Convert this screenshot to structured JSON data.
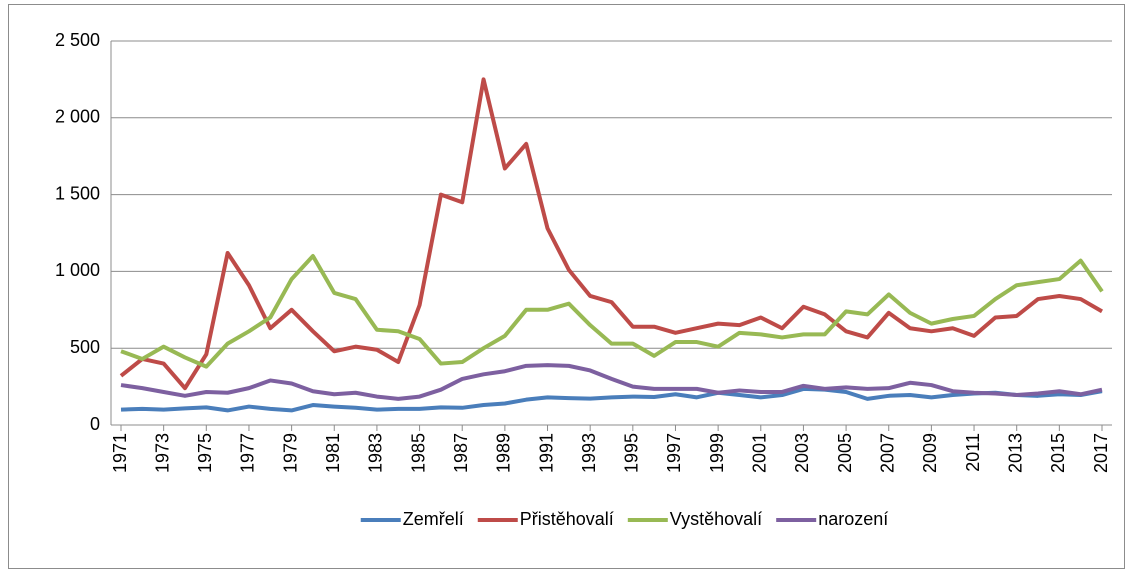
{
  "chart_data": {
    "type": "line",
    "x": [
      1971,
      1972,
      1973,
      1974,
      1975,
      1976,
      1977,
      1978,
      1979,
      1980,
      1981,
      1982,
      1983,
      1984,
      1985,
      1986,
      1987,
      1988,
      1989,
      1990,
      1991,
      1992,
      1993,
      1994,
      1995,
      1996,
      1997,
      1998,
      1999,
      2000,
      2001,
      2002,
      2003,
      2004,
      2005,
      2006,
      2007,
      2008,
      2009,
      2010,
      2011,
      2012,
      2013,
      2014,
      2015,
      2016,
      2017
    ],
    "xlim": [
      1971,
      2017
    ],
    "xticks": [
      1971,
      1973,
      1975,
      1977,
      1979,
      1981,
      1983,
      1985,
      1987,
      1989,
      1991,
      1993,
      1995,
      1997,
      1999,
      2001,
      2003,
      2005,
      2007,
      2009,
      2011,
      2013,
      2015,
      2017
    ],
    "ylim": [
      0,
      2500
    ],
    "yticks": [
      0,
      500,
      {
        "value": 1000,
        "label": "1 000"
      },
      {
        "value": 1500,
        "label": "1 500"
      },
      {
        "value": 2000,
        "label": "2 000"
      },
      {
        "value": 2500,
        "label": "2 500"
      }
    ],
    "grid": true,
    "legend": "bottom",
    "series": [
      {
        "name": "Zemřelí",
        "color": "#4a7ebb",
        "values": [
          100,
          105,
          100,
          108,
          115,
          95,
          120,
          105,
          95,
          130,
          120,
          112,
          100,
          105,
          105,
          115,
          112,
          130,
          140,
          165,
          180,
          175,
          172,
          180,
          185,
          182,
          200,
          180,
          210,
          195,
          180,
          195,
          235,
          230,
          215,
          170,
          190,
          195,
          180,
          195,
          205,
          210,
          195,
          190,
          200,
          195,
          220
        ]
      },
      {
        "name": "Přistěhovalí",
        "color": "#be4b48",
        "values": [
          320,
          430,
          400,
          240,
          460,
          1120,
          910,
          630,
          750,
          610,
          480,
          510,
          490,
          410,
          780,
          1500,
          1450,
          2250,
          1670,
          1830,
          1280,
          1010,
          840,
          800,
          640,
          640,
          600,
          630,
          660,
          650,
          700,
          630,
          770,
          720,
          610,
          570,
          730,
          630,
          610,
          630,
          580,
          700,
          710,
          820,
          840,
          820,
          740
        ]
      },
      {
        "name": "Vystěhovalí",
        "color": "#98b954",
        "values": [
          480,
          430,
          510,
          440,
          380,
          530,
          610,
          700,
          950,
          1100,
          860,
          820,
          620,
          610,
          560,
          400,
          410,
          500,
          580,
          750,
          750,
          790,
          650,
          530,
          530,
          450,
          540,
          540,
          510,
          600,
          590,
          570,
          590,
          590,
          740,
          720,
          850,
          730,
          660,
          690,
          710,
          820,
          910,
          930,
          950,
          1070,
          870
        ]
      },
      {
        "name": "narození",
        "color": "#7d60a0",
        "values": [
          260,
          240,
          215,
          190,
          215,
          210,
          240,
          290,
          270,
          220,
          200,
          210,
          185,
          170,
          185,
          230,
          300,
          330,
          350,
          385,
          390,
          385,
          355,
          300,
          250,
          235,
          235,
          235,
          210,
          225,
          215,
          215,
          255,
          235,
          245,
          235,
          240,
          275,
          260,
          220,
          210,
          205,
          195,
          205,
          220,
          200,
          230
        ]
      }
    ]
  }
}
